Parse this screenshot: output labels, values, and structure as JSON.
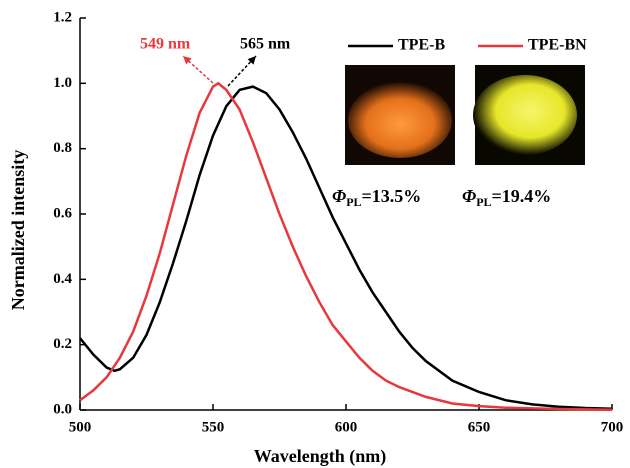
{
  "chart_data": {
    "type": "line",
    "xlabel": "Wavelength (nm)",
    "ylabel": "Normalized intensity",
    "xlim": [
      500,
      700
    ],
    "xticks": [
      500,
      550,
      600,
      650,
      700
    ],
    "ylim": [
      0,
      1.2
    ],
    "yticks": [
      {
        "value": 0,
        "label": "0.0"
      },
      0.2,
      0.4,
      0.6,
      0.8,
      {
        "value": 1,
        "label": "1.0"
      },
      1.2
    ],
    "legend": "top-right",
    "series": [
      {
        "name": "TPE-B",
        "color": "#000000",
        "x": [
          500,
          505,
          510,
          513,
          515,
          520,
          525,
          530,
          535,
          540,
          545,
          550,
          555,
          560,
          565,
          570,
          575,
          580,
          585,
          590,
          595,
          600,
          605,
          610,
          615,
          620,
          625,
          630,
          640,
          650,
          660,
          670,
          680,
          690,
          700
        ],
        "values": [
          0.22,
          0.17,
          0.13,
          0.12,
          0.125,
          0.16,
          0.23,
          0.33,
          0.45,
          0.58,
          0.72,
          0.84,
          0.93,
          0.98,
          0.99,
          0.97,
          0.92,
          0.85,
          0.77,
          0.68,
          0.59,
          0.51,
          0.43,
          0.36,
          0.3,
          0.24,
          0.19,
          0.15,
          0.09,
          0.055,
          0.03,
          0.017,
          0.01,
          0.006,
          0.004
        ]
      },
      {
        "name": "TPE-BN",
        "color": "#e8383d",
        "x": [
          500,
          505,
          510,
          515,
          520,
          525,
          530,
          535,
          540,
          545,
          550,
          552,
          555,
          560,
          565,
          570,
          575,
          580,
          585,
          590,
          595,
          600,
          605,
          610,
          615,
          620,
          630,
          640,
          650,
          660,
          680,
          700
        ],
        "values": [
          0.03,
          0.06,
          0.1,
          0.16,
          0.24,
          0.35,
          0.48,
          0.63,
          0.78,
          0.91,
          0.99,
          1.0,
          0.98,
          0.92,
          0.82,
          0.71,
          0.6,
          0.5,
          0.41,
          0.33,
          0.26,
          0.21,
          0.16,
          0.12,
          0.09,
          0.07,
          0.04,
          0.02,
          0.012,
          0.007,
          0.003,
          0.001
        ]
      }
    ],
    "annotations": [
      {
        "text": "549 nm",
        "color": "#e8383d"
      },
      {
        "text": "565 nm",
        "color": "#000000"
      }
    ],
    "quantum_yields": [
      {
        "symbol": "Φ",
        "subscript": "PL",
        "text": "=13.5%"
      },
      {
        "symbol": "Φ",
        "subscript": "PL",
        "text": "=19.4%"
      }
    ]
  }
}
